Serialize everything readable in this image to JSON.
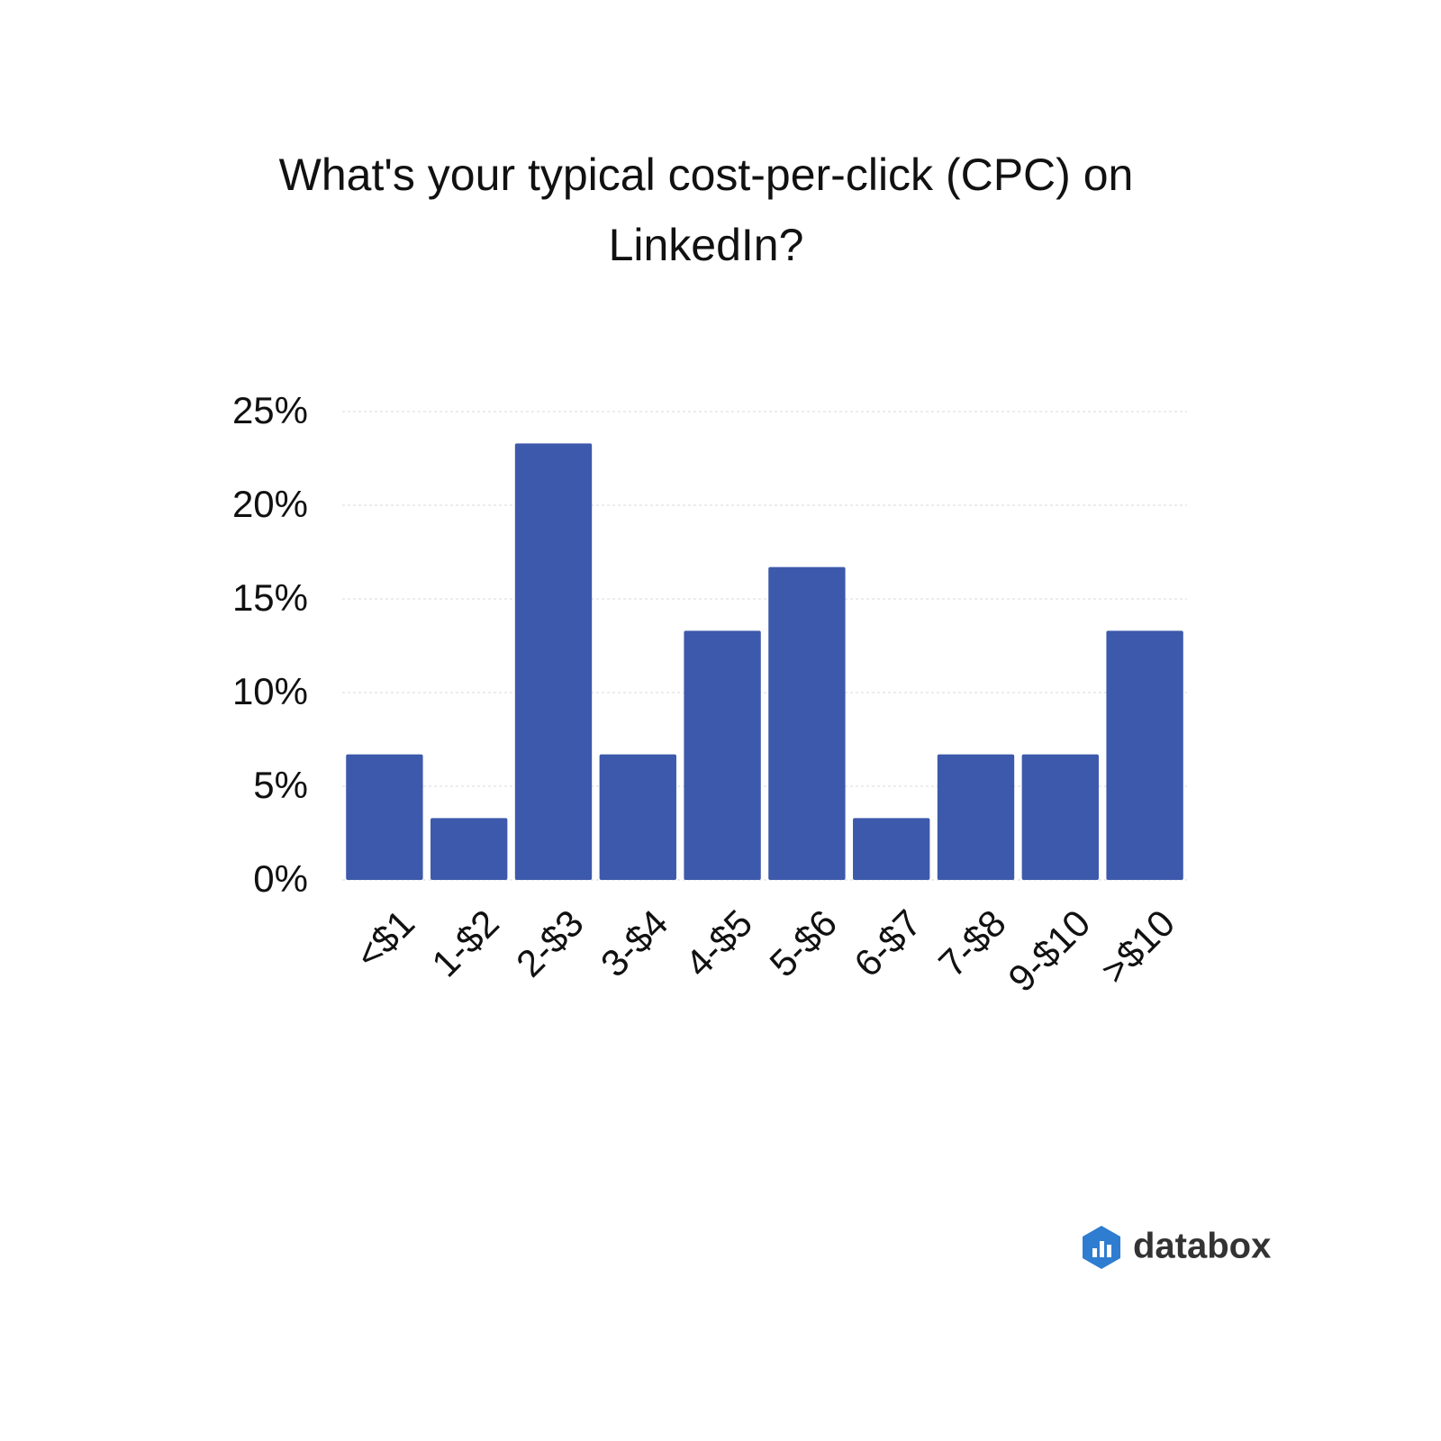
{
  "chart_data": {
    "type": "bar",
    "title": "What's your typical cost-per-click (CPC) on LinkedIn?",
    "categories": [
      "<$1",
      "1-$2",
      "2-$3",
      "3-$4",
      "4-$5",
      "5-$6",
      "6-$7",
      "7-$8",
      "9-$10",
      ">$10"
    ],
    "values": [
      6.7,
      3.3,
      23.3,
      6.7,
      13.3,
      16.7,
      3.3,
      6.7,
      6.7,
      13.3
    ],
    "color": "#3d59ab",
    "ylim": [
      0,
      25
    ],
    "yticks": [
      {
        "value": 0,
        "label": "0%"
      },
      {
        "value": 5,
        "label": "5%"
      },
      {
        "value": 10,
        "label": "10%"
      },
      {
        "value": 15,
        "label": "15%"
      },
      {
        "value": 20,
        "label": "20%"
      },
      {
        "value": 25,
        "label": "25%"
      }
    ],
    "grid": true
  },
  "brand": "databox"
}
